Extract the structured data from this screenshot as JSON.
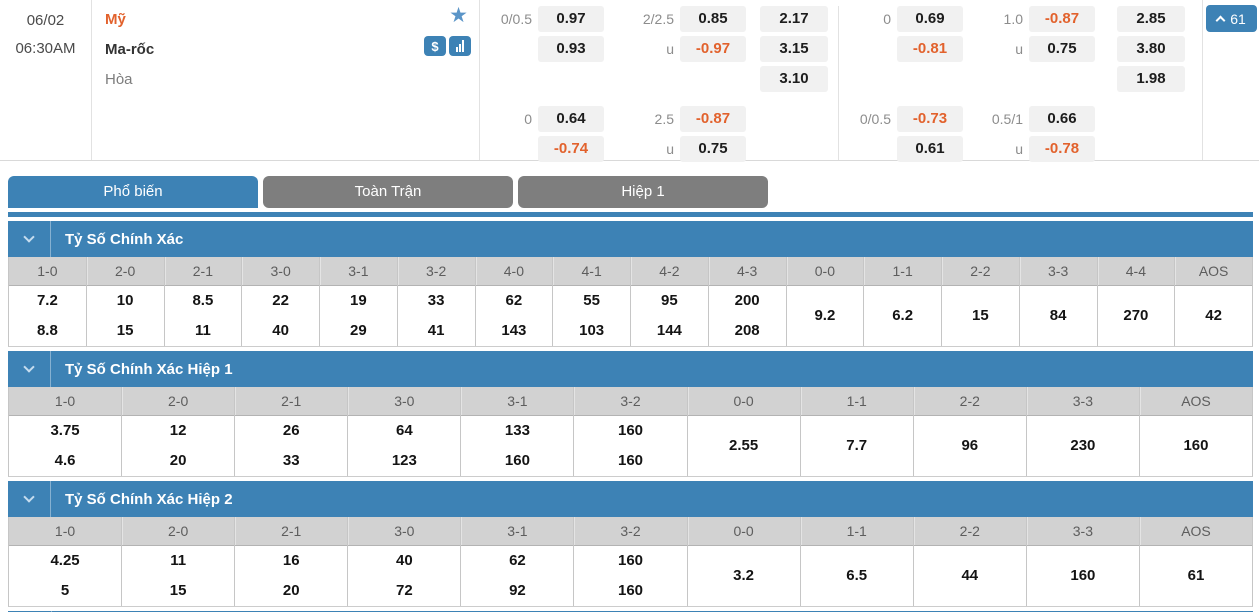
{
  "colors": {
    "accent_blue": "#3d82b5",
    "odds_negative_orange": "#e2622d",
    "home_team_orange": "#e2622d",
    "tab_inactive_gray": "#7e7e7e"
  },
  "glyphs": {
    "star": "★",
    "dollar": "$"
  },
  "match": {
    "date": "06/02",
    "time": "06:30AM",
    "home_team": "Mỹ",
    "away_team": "Ma-rốc",
    "draw_label": "Hòa",
    "expand_count": "61"
  },
  "odds": {
    "groups": [
      {
        "type": "handicap",
        "upper": [
          {
            "label": "0/0.5",
            "value": "0.97"
          },
          {
            "label": "",
            "value": "0.93"
          }
        ],
        "lower": [
          {
            "label": "0",
            "value": "0.64"
          },
          {
            "label": "",
            "value": "-0.74"
          }
        ]
      },
      {
        "type": "over-under",
        "upper": [
          {
            "label": "2/2.5",
            "value": "0.85"
          },
          {
            "label": "u",
            "value": "-0.97"
          }
        ],
        "lower": [
          {
            "label": "2.5",
            "value": "-0.87"
          },
          {
            "label": "u",
            "value": "0.75"
          }
        ]
      },
      {
        "type": "1x2",
        "upper": [
          {
            "label": "",
            "value": "2.17"
          },
          {
            "label": "",
            "value": "3.15"
          },
          {
            "label": "",
            "value": "3.10"
          }
        ],
        "lower": []
      },
      {
        "type": "handicap",
        "divider_before": true,
        "upper": [
          {
            "label": "0",
            "value": "0.69"
          },
          {
            "label": "",
            "value": "-0.81"
          }
        ],
        "lower": [
          {
            "label": "0/0.5",
            "value": "-0.73"
          },
          {
            "label": "",
            "value": "0.61"
          }
        ]
      },
      {
        "type": "over-under",
        "upper": [
          {
            "label": "1.0",
            "value": "-0.87"
          },
          {
            "label": "u",
            "value": "0.75"
          }
        ],
        "lower": [
          {
            "label": "0.5/1",
            "value": "0.66"
          },
          {
            "label": "u",
            "value": "-0.78"
          }
        ]
      },
      {
        "type": "1x2",
        "upper": [
          {
            "label": "",
            "value": "2.85"
          },
          {
            "label": "",
            "value": "3.80"
          },
          {
            "label": "",
            "value": "1.98"
          }
        ],
        "lower": []
      }
    ]
  },
  "tabs": [
    {
      "label": "Phổ biến",
      "active": true
    },
    {
      "label": "Toàn Trận",
      "active": false
    },
    {
      "label": "Hiệp 1",
      "active": false
    }
  ],
  "sections": [
    {
      "title": "Tỷ Số Chính Xác",
      "columns": [
        {
          "score": "1-0",
          "values": [
            "7.2",
            "8.8"
          ]
        },
        {
          "score": "2-0",
          "values": [
            "10",
            "15"
          ]
        },
        {
          "score": "2-1",
          "values": [
            "8.5",
            "11"
          ]
        },
        {
          "score": "3-0",
          "values": [
            "22",
            "40"
          ]
        },
        {
          "score": "3-1",
          "values": [
            "19",
            "29"
          ]
        },
        {
          "score": "3-2",
          "values": [
            "33",
            "41"
          ]
        },
        {
          "score": "4-0",
          "values": [
            "62",
            "143"
          ]
        },
        {
          "score": "4-1",
          "values": [
            "55",
            "103"
          ]
        },
        {
          "score": "4-2",
          "values": [
            "95",
            "144"
          ]
        },
        {
          "score": "4-3",
          "values": [
            "200",
            "208"
          ]
        },
        {
          "score": "0-0",
          "values": [
            "9.2"
          ]
        },
        {
          "score": "1-1",
          "values": [
            "6.2"
          ]
        },
        {
          "score": "2-2",
          "values": [
            "15"
          ]
        },
        {
          "score": "3-3",
          "values": [
            "84"
          ]
        },
        {
          "score": "4-4",
          "values": [
            "270"
          ]
        },
        {
          "score": "AOS",
          "values": [
            "42"
          ]
        }
      ]
    },
    {
      "title": "Tỷ Số Chính Xác Hiệp 1",
      "columns": [
        {
          "score": "1-0",
          "values": [
            "3.75",
            "4.6"
          ]
        },
        {
          "score": "2-0",
          "values": [
            "12",
            "20"
          ]
        },
        {
          "score": "2-1",
          "values": [
            "26",
            "33"
          ]
        },
        {
          "score": "3-0",
          "values": [
            "64",
            "123"
          ]
        },
        {
          "score": "3-1",
          "values": [
            "133",
            "160"
          ]
        },
        {
          "score": "3-2",
          "values": [
            "160",
            "160"
          ]
        },
        {
          "score": "0-0",
          "values": [
            "2.55"
          ]
        },
        {
          "score": "1-1",
          "values": [
            "7.7"
          ]
        },
        {
          "score": "2-2",
          "values": [
            "96"
          ]
        },
        {
          "score": "3-3",
          "values": [
            "230"
          ]
        },
        {
          "score": "AOS",
          "values": [
            "160"
          ]
        }
      ]
    },
    {
      "title": "Tỷ Số Chính Xác Hiệp 2",
      "columns": [
        {
          "score": "1-0",
          "values": [
            "4.25",
            "5"
          ]
        },
        {
          "score": "2-0",
          "values": [
            "11",
            "15"
          ]
        },
        {
          "score": "2-1",
          "values": [
            "16",
            "20"
          ]
        },
        {
          "score": "3-0",
          "values": [
            "40",
            "72"
          ]
        },
        {
          "score": "3-1",
          "values": [
            "62",
            "92"
          ]
        },
        {
          "score": "3-2",
          "values": [
            "160",
            "160"
          ]
        },
        {
          "score": "0-0",
          "values": [
            "3.2"
          ]
        },
        {
          "score": "1-1",
          "values": [
            "6.5"
          ]
        },
        {
          "score": "2-2",
          "values": [
            "44"
          ]
        },
        {
          "score": "3-3",
          "values": [
            "160"
          ]
        },
        {
          "score": "AOS",
          "values": [
            "61"
          ]
        }
      ]
    }
  ]
}
